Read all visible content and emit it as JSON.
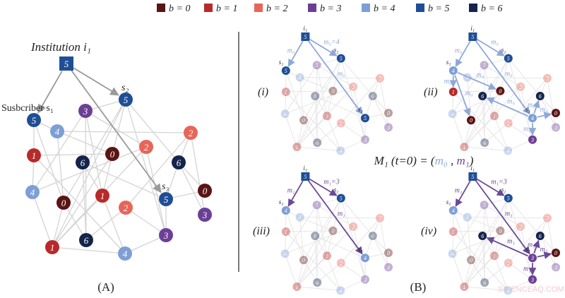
{
  "legend": [
    {
      "label": "b = 0",
      "color": "#5a1414"
    },
    {
      "label": "b = 1",
      "color": "#b82a2a"
    },
    {
      "label": "b = 2",
      "color": "#e8655a"
    },
    {
      "label": "b = 3",
      "color": "#6b3f96"
    },
    {
      "label": "b = 4",
      "color": "#7e9fd6"
    },
    {
      "label": "b = 5",
      "color": "#1f4e96"
    },
    {
      "label": "b = 6",
      "color": "#14244a"
    }
  ],
  "panel_a": {
    "institution_label": "Institution i₁",
    "subscriber_label": "Susbcriber s₁",
    "s2_label": "s₂",
    "s3_label": "s₃",
    "caption": "(A)",
    "nodes": {
      "i1": 5,
      "s1": 5,
      "s2": 5,
      "s3": 5,
      "a3": 3,
      "a4": 4,
      "a2": 2,
      "b2": 2,
      "a0": 0,
      "a1": 1,
      "a6": 6,
      "b6": 6,
      "b4": 4,
      "b0": 0,
      "b1": 1,
      "c2": 2,
      "c0": 0,
      "b3": 3,
      "c3": 3,
      "c6": 6,
      "c1": 1,
      "c4": 4
    }
  },
  "panel_b": {
    "caption": "(B)",
    "equation": {
      "prefix": "M₁ (t=0) = (",
      "m0": "m₀",
      "sep": " , ",
      "m1": "m₁",
      "suffix": ")"
    },
    "m0_color": "#8fa8d8",
    "m1_color": "#6b4a96",
    "node_labels": {
      "i1": "i₁",
      "s1": "s₁",
      "s2": "s₂",
      "s3": "s₃"
    },
    "subpanels": [
      {
        "label": "(i)",
        "msg": "m0",
        "overrides": {},
        "highlight": [
          "i1",
          "s1",
          "s2",
          "s3"
        ],
        "arrows": [
          {
            "from": "i1",
            "to": "s1",
            "label": "m₀"
          },
          {
            "from": "i1",
            "to": "s2",
            "label": "m₀=4"
          },
          {
            "from": "i1",
            "to": "s3",
            "label": "m₀"
          }
        ]
      },
      {
        "label": "(ii)",
        "msg": "m0",
        "overrides": {
          "s1": 4,
          "s3": 4
        },
        "highlight": [
          "i1",
          "s1",
          "s2",
          "s3",
          "a1",
          "a0",
          "b0",
          "a6",
          "b6",
          "c0",
          "c3"
        ],
        "arrows": [
          {
            "from": "i1",
            "to": "s1",
            "label": "m₀"
          },
          {
            "from": "i1",
            "to": "s2",
            "label": "m₀"
          },
          {
            "from": "i1",
            "to": "s3",
            "label": "m₀"
          },
          {
            "from": "s1",
            "to": "a1",
            "label": "m₀"
          },
          {
            "from": "s1",
            "to": "a0",
            "label": "m₀"
          },
          {
            "from": "s1",
            "to": "b0",
            "label": "m₀"
          },
          {
            "from": "s3",
            "to": "a6",
            "label": "m₀"
          },
          {
            "from": "s3",
            "to": "b6",
            "label": "m₀"
          },
          {
            "from": "s3",
            "to": "c0",
            "label": "m₀"
          },
          {
            "from": "s3",
            "to": "c3",
            "label": "m₀"
          }
        ]
      },
      {
        "label": "(iii)",
        "msg": "m1",
        "overrides": {
          "s1": 4,
          "s3": 4
        },
        "highlight": [
          "i1",
          "s1",
          "s2",
          "s3"
        ],
        "arrows": [
          {
            "from": "i1",
            "to": "s1",
            "label": "m₁"
          },
          {
            "from": "i1",
            "to": "s2",
            "label": "m₁=3"
          },
          {
            "from": "i1",
            "to": "s3",
            "label": "m₁"
          }
        ]
      },
      {
        "label": "(iv)",
        "msg": "m1",
        "overrides": {
          "s1": 4,
          "s3": 3,
          "c3": 3
        },
        "highlight": [
          "i1",
          "s1",
          "s2",
          "s3",
          "a6",
          "b6",
          "c0",
          "c3"
        ],
        "arrows": [
          {
            "from": "i1",
            "to": "s1",
            "label": "m₁"
          },
          {
            "from": "i1",
            "to": "s2",
            "label": "m₁=3"
          },
          {
            "from": "i1",
            "to": "s3",
            "label": "m₁"
          },
          {
            "from": "s3",
            "to": "a6",
            "label": "m₁"
          },
          {
            "from": "s3",
            "to": "b6",
            "label": "m₁"
          },
          {
            "from": "s3",
            "to": "c0",
            "label": "m₁"
          },
          {
            "from": "s3",
            "to": "c3",
            "label": "m₁"
          }
        ]
      }
    ]
  },
  "watermark": "SCIENCEAQ.COM"
}
